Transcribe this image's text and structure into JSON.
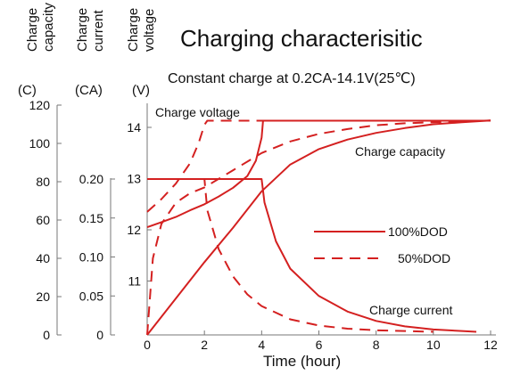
{
  "chart_data": {
    "type": "line",
    "title": "Charging characterisitic",
    "subtitle": "Constant charge at 0.2CA-14.1V(25℃)",
    "xlabel": "Time (hour)",
    "xlim": [
      0,
      12
    ],
    "xticks": [
      "0",
      "2",
      "4",
      "6",
      "8",
      "10",
      "12"
    ],
    "y_axes": [
      {
        "label_lines": [
          "Charge",
          "capacity",
          "(C)"
        ],
        "range": [
          0,
          120
        ],
        "ticks": [
          "0",
          "20",
          "40",
          "60",
          "80",
          "100",
          "120"
        ]
      },
      {
        "label_lines": [
          "Charge",
          "current",
          "(CA)"
        ],
        "range": [
          0,
          0.2
        ],
        "ticks": [
          "0",
          "0.05",
          "0.10",
          "0.15",
          "0.20"
        ]
      },
      {
        "label_lines": [
          "Charge",
          "voltage",
          "(V)"
        ],
        "range": [
          10,
          14
        ],
        "ticks": [
          "11",
          "12",
          "13",
          "14"
        ]
      }
    ],
    "annotations": {
      "charge_voltage": "Charge voltage",
      "charge_capacity": "Charge capacity",
      "charge_current": "Charge current"
    },
    "legend": {
      "position": "right",
      "items": [
        {
          "label": "100%DOD",
          "style": "solid"
        },
        {
          "label": "50%DOD",
          "style": "dashed"
        }
      ]
    },
    "line_color": "#d42020",
    "series": [
      {
        "name": "100%DOD",
        "quantity": "voltage",
        "axis": "voltage",
        "style": "solid",
        "x": [
          0,
          0.5,
          1,
          1.5,
          2,
          2.5,
          3,
          3.5,
          3.8,
          4.0,
          4.05,
          6,
          8,
          10,
          12
        ],
        "y": [
          12.05,
          12.15,
          12.25,
          12.38,
          12.5,
          12.65,
          12.82,
          13.05,
          13.35,
          13.8,
          14.13,
          14.13,
          14.13,
          14.13,
          14.13
        ]
      },
      {
        "name": "50%DOD",
        "quantity": "voltage",
        "axis": "voltage",
        "style": "dashed",
        "x": [
          0,
          0.5,
          1,
          1.5,
          1.8,
          2.0,
          2.1,
          4,
          6,
          8,
          10,
          12
        ],
        "y": [
          12.35,
          12.6,
          12.9,
          13.3,
          13.7,
          14.05,
          14.13,
          14.13,
          14.13,
          14.13,
          14.13,
          14.13
        ]
      },
      {
        "name": "100%DOD",
        "quantity": "current",
        "axis": "current",
        "style": "solid",
        "x": [
          0,
          4.0,
          4.1,
          4.5,
          5,
          6,
          7,
          8,
          9,
          10,
          11,
          11.5
        ],
        "y": [
          0.2,
          0.2,
          0.17,
          0.12,
          0.085,
          0.05,
          0.03,
          0.018,
          0.011,
          0.007,
          0.005,
          0.004
        ]
      },
      {
        "name": "50%DOD",
        "quantity": "current",
        "axis": "current",
        "style": "dashed",
        "x": [
          0,
          2.0,
          2.1,
          2.5,
          3,
          3.5,
          4,
          5,
          6,
          7,
          8,
          9,
          10
        ],
        "y": [
          0.2,
          0.2,
          0.16,
          0.11,
          0.075,
          0.052,
          0.037,
          0.02,
          0.012,
          0.008,
          0.006,
          0.005,
          0.004
        ]
      },
      {
        "name": "100%DOD",
        "quantity": "capacity",
        "axis": "capacity",
        "style": "solid",
        "x": [
          0,
          1,
          2,
          3,
          4,
          5,
          6,
          7,
          8,
          9,
          10,
          11,
          12
        ],
        "y": [
          0,
          19,
          38,
          56,
          75,
          89,
          97,
          102,
          105.5,
          108,
          110,
          111,
          112
        ]
      },
      {
        "name": "50%DOD",
        "quantity": "capacity",
        "axis": "capacity",
        "style": "dashed",
        "x": [
          0,
          0.2,
          0.5,
          1,
          1.5,
          2,
          3,
          4,
          5,
          6,
          7,
          8,
          9,
          10,
          11,
          12
        ],
        "y": [
          0,
          40,
          58,
          69,
          74,
          77,
          86,
          95,
          101,
          105,
          107.5,
          109.5,
          110.5,
          111,
          111.5,
          112
        ]
      }
    ]
  }
}
